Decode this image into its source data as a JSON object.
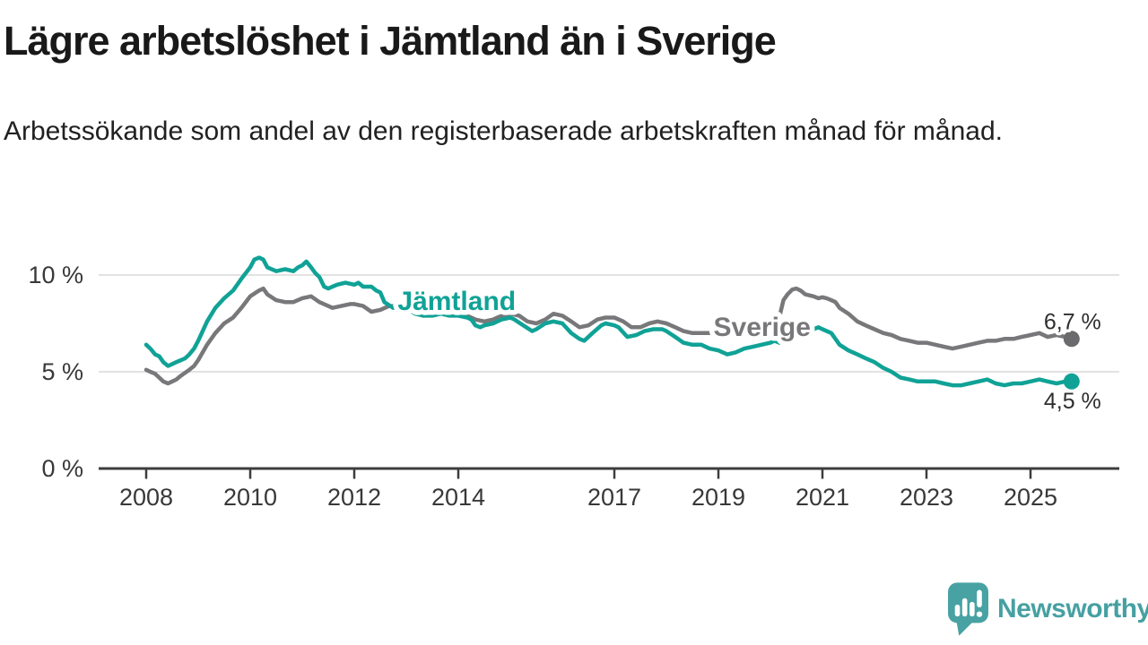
{
  "header": {
    "title": "Lägre arbetslöshet i Jämtland än i Sverige",
    "subtitle": "Arbetssökande som andel av den registerbaserade arbetskraften månad för månad."
  },
  "branding": {
    "wordmark": "Newsworthy",
    "accent_color": "#46a0a2"
  },
  "chart_data": {
    "type": "line",
    "title": "Lägre arbetslöshet i Jämtland än i Sverige",
    "subtitle": "Arbetssökande som andel av den registerbaserade arbetskraften månad för månad.",
    "x_unit": "year (monthly observations)",
    "x_range": [
      2007.1,
      2026.7
    ],
    "ylim": [
      0,
      11.6
    ],
    "grid": "horizontal",
    "legend_position": "inline-labels",
    "colors": {
      "gridline": "#d9d9d9",
      "axis": "#3d3d3d",
      "annotation_text": "#2e2e2e"
    },
    "y_ticks": [
      {
        "value": 0,
        "label": "0 %"
      },
      {
        "value": 5,
        "label": "5 %"
      },
      {
        "value": 10,
        "label": "10 %"
      }
    ],
    "x_ticks": [
      {
        "value": 2008,
        "label": "2008"
      },
      {
        "value": 2010,
        "label": "2010"
      },
      {
        "value": 2012,
        "label": "2012"
      },
      {
        "value": 2014,
        "label": "2014"
      },
      {
        "value": 2017,
        "label": "2017"
      },
      {
        "value": 2019,
        "label": "2019"
      },
      {
        "value": 2021,
        "label": "2021"
      },
      {
        "value": 2023,
        "label": "2023"
      },
      {
        "value": 2025,
        "label": "2025"
      }
    ],
    "series": [
      {
        "name": "Sverige",
        "color": "#78787b",
        "dot_color": "#6b6b6e",
        "label_color": "#78787b",
        "label_pos": [
          2019.84,
          7.31
        ],
        "end_label": "6,7 %",
        "end_value": 6.7,
        "end_label_placement": "above-end",
        "points": [
          [
            2008.0,
            5.1
          ],
          [
            2008.08,
            5.0
          ],
          [
            2008.17,
            4.9
          ],
          [
            2008.25,
            4.7
          ],
          [
            2008.33,
            4.5
          ],
          [
            2008.42,
            4.4
          ],
          [
            2008.5,
            4.5
          ],
          [
            2008.58,
            4.6
          ],
          [
            2008.67,
            4.8
          ],
          [
            2008.83,
            5.1
          ],
          [
            2008.92,
            5.3
          ],
          [
            2009.0,
            5.6
          ],
          [
            2009.17,
            6.4
          ],
          [
            2009.33,
            7.0
          ],
          [
            2009.5,
            7.5
          ],
          [
            2009.67,
            7.8
          ],
          [
            2009.83,
            8.3
          ],
          [
            2010.0,
            8.9
          ],
          [
            2010.17,
            9.2
          ],
          [
            2010.25,
            9.3
          ],
          [
            2010.33,
            9.0
          ],
          [
            2010.5,
            8.7
          ],
          [
            2010.67,
            8.6
          ],
          [
            2010.83,
            8.6
          ],
          [
            2011.0,
            8.8
          ],
          [
            2011.17,
            8.9
          ],
          [
            2011.33,
            8.6
          ],
          [
            2011.5,
            8.4
          ],
          [
            2011.58,
            8.3
          ],
          [
            2011.75,
            8.4
          ],
          [
            2011.92,
            8.5
          ],
          [
            2012.0,
            8.5
          ],
          [
            2012.17,
            8.4
          ],
          [
            2012.33,
            8.1
          ],
          [
            2012.5,
            8.2
          ],
          [
            2012.67,
            8.4
          ],
          [
            2012.83,
            8.4
          ],
          [
            2013.0,
            8.4
          ],
          [
            2013.17,
            8.1
          ],
          [
            2013.33,
            7.9
          ],
          [
            2013.5,
            8.0
          ],
          [
            2013.67,
            8.1
          ],
          [
            2013.83,
            8.0
          ],
          [
            2014.0,
            8.0
          ],
          [
            2014.17,
            7.9
          ],
          [
            2014.33,
            7.7
          ],
          [
            2014.5,
            7.6
          ],
          [
            2014.67,
            7.7
          ],
          [
            2014.83,
            7.9
          ],
          [
            2015.0,
            8.0
          ],
          [
            2015.17,
            7.9
          ],
          [
            2015.33,
            7.6
          ],
          [
            2015.5,
            7.5
          ],
          [
            2015.67,
            7.7
          ],
          [
            2015.83,
            8.0
          ],
          [
            2016.0,
            7.9
          ],
          [
            2016.17,
            7.6
          ],
          [
            2016.33,
            7.3
          ],
          [
            2016.5,
            7.4
          ],
          [
            2016.67,
            7.7
          ],
          [
            2016.83,
            7.8
          ],
          [
            2017.0,
            7.8
          ],
          [
            2017.17,
            7.6
          ],
          [
            2017.33,
            7.3
          ],
          [
            2017.5,
            7.3
          ],
          [
            2017.67,
            7.5
          ],
          [
            2017.83,
            7.6
          ],
          [
            2018.0,
            7.5
          ],
          [
            2018.17,
            7.3
          ],
          [
            2018.33,
            7.1
          ],
          [
            2018.5,
            7.0
          ],
          [
            2018.67,
            7.0
          ],
          [
            2018.83,
            7.0
          ],
          [
            2019.0,
            7.0
          ],
          [
            2019.17,
            6.9
          ],
          [
            2019.33,
            6.9
          ],
          [
            2019.5,
            6.9
          ],
          [
            2019.67,
            7.0
          ],
          [
            2019.83,
            7.0
          ],
          [
            2020.0,
            7.1
          ],
          [
            2020.17,
            7.8
          ],
          [
            2020.25,
            8.7
          ],
          [
            2020.33,
            9.0
          ],
          [
            2020.42,
            9.25
          ],
          [
            2020.5,
            9.3
          ],
          [
            2020.58,
            9.2
          ],
          [
            2020.67,
            9.0
          ],
          [
            2020.83,
            8.9
          ],
          [
            2020.92,
            8.8
          ],
          [
            2021.0,
            8.85
          ],
          [
            2021.08,
            8.8
          ],
          [
            2021.17,
            8.7
          ],
          [
            2021.25,
            8.6
          ],
          [
            2021.33,
            8.3
          ],
          [
            2021.5,
            8.0
          ],
          [
            2021.67,
            7.6
          ],
          [
            2021.83,
            7.4
          ],
          [
            2022.0,
            7.2
          ],
          [
            2022.17,
            7.0
          ],
          [
            2022.33,
            6.9
          ],
          [
            2022.5,
            6.7
          ],
          [
            2022.67,
            6.6
          ],
          [
            2022.83,
            6.5
          ],
          [
            2023.0,
            6.5
          ],
          [
            2023.17,
            6.4
          ],
          [
            2023.33,
            6.3
          ],
          [
            2023.5,
            6.2
          ],
          [
            2023.67,
            6.3
          ],
          [
            2023.83,
            6.4
          ],
          [
            2024.0,
            6.5
          ],
          [
            2024.17,
            6.6
          ],
          [
            2024.33,
            6.6
          ],
          [
            2024.5,
            6.7
          ],
          [
            2024.67,
            6.7
          ],
          [
            2024.83,
            6.8
          ],
          [
            2025.0,
            6.9
          ],
          [
            2025.17,
            7.0
          ],
          [
            2025.33,
            6.8
          ],
          [
            2025.5,
            6.9
          ],
          [
            2025.67,
            6.8
          ],
          [
            2025.79,
            6.7
          ]
        ]
      },
      {
        "name": "Jämtland",
        "color": "#10a296",
        "dot_color": "#10a296",
        "label_color": "#10a296",
        "label_pos": [
          2013.97,
          8.66
        ],
        "end_label": "4,5 %",
        "end_value": 4.5,
        "end_label_placement": "below-end",
        "points": [
          [
            2008.0,
            6.4
          ],
          [
            2008.08,
            6.2
          ],
          [
            2008.17,
            5.9
          ],
          [
            2008.25,
            5.8
          ],
          [
            2008.33,
            5.5
          ],
          [
            2008.42,
            5.3
          ],
          [
            2008.5,
            5.4
          ],
          [
            2008.58,
            5.5
          ],
          [
            2008.67,
            5.6
          ],
          [
            2008.75,
            5.7
          ],
          [
            2008.83,
            5.9
          ],
          [
            2008.92,
            6.2
          ],
          [
            2009.0,
            6.6
          ],
          [
            2009.17,
            7.6
          ],
          [
            2009.33,
            8.3
          ],
          [
            2009.5,
            8.8
          ],
          [
            2009.67,
            9.2
          ],
          [
            2009.83,
            9.8
          ],
          [
            2010.0,
            10.4
          ],
          [
            2010.08,
            10.8
          ],
          [
            2010.17,
            10.9
          ],
          [
            2010.25,
            10.8
          ],
          [
            2010.33,
            10.4
          ],
          [
            2010.5,
            10.2
          ],
          [
            2010.67,
            10.3
          ],
          [
            2010.83,
            10.2
          ],
          [
            2010.92,
            10.4
          ],
          [
            2011.0,
            10.5
          ],
          [
            2011.08,
            10.7
          ],
          [
            2011.17,
            10.4
          ],
          [
            2011.25,
            10.1
          ],
          [
            2011.33,
            9.9
          ],
          [
            2011.42,
            9.4
          ],
          [
            2011.5,
            9.3
          ],
          [
            2011.58,
            9.4
          ],
          [
            2011.67,
            9.5
          ],
          [
            2011.83,
            9.6
          ],
          [
            2012.0,
            9.5
          ],
          [
            2012.08,
            9.6
          ],
          [
            2012.17,
            9.4
          ],
          [
            2012.33,
            9.4
          ],
          [
            2012.42,
            9.2
          ],
          [
            2012.5,
            9.1
          ],
          [
            2012.58,
            8.6
          ],
          [
            2012.75,
            8.3
          ],
          [
            2012.92,
            8.4
          ],
          [
            2013.0,
            8.3
          ],
          [
            2013.17,
            8.0
          ],
          [
            2013.33,
            7.9
          ],
          [
            2013.5,
            7.9
          ],
          [
            2013.67,
            8.0
          ],
          [
            2013.83,
            7.9
          ],
          [
            2014.0,
            7.9
          ],
          [
            2014.17,
            7.8
          ],
          [
            2014.25,
            7.7
          ],
          [
            2014.33,
            7.4
          ],
          [
            2014.42,
            7.3
          ],
          [
            2014.5,
            7.4
          ],
          [
            2014.67,
            7.5
          ],
          [
            2014.83,
            7.7
          ],
          [
            2015.0,
            7.8
          ],
          [
            2015.08,
            7.7
          ],
          [
            2015.25,
            7.4
          ],
          [
            2015.42,
            7.1
          ],
          [
            2015.5,
            7.2
          ],
          [
            2015.67,
            7.5
          ],
          [
            2015.83,
            7.6
          ],
          [
            2016.0,
            7.5
          ],
          [
            2016.17,
            7.0
          ],
          [
            2016.33,
            6.7
          ],
          [
            2016.42,
            6.6
          ],
          [
            2016.58,
            7.0
          ],
          [
            2016.75,
            7.4
          ],
          [
            2016.83,
            7.5
          ],
          [
            2017.0,
            7.4
          ],
          [
            2017.08,
            7.3
          ],
          [
            2017.25,
            6.8
          ],
          [
            2017.42,
            6.9
          ],
          [
            2017.58,
            7.1
          ],
          [
            2017.75,
            7.2
          ],
          [
            2017.92,
            7.2
          ],
          [
            2018.0,
            7.1
          ],
          [
            2018.17,
            6.8
          ],
          [
            2018.33,
            6.5
          ],
          [
            2018.5,
            6.4
          ],
          [
            2018.67,
            6.4
          ],
          [
            2018.83,
            6.2
          ],
          [
            2019.0,
            6.1
          ],
          [
            2019.17,
            5.9
          ],
          [
            2019.33,
            6.0
          ],
          [
            2019.5,
            6.2
          ],
          [
            2019.67,
            6.3
          ],
          [
            2019.83,
            6.4
          ],
          [
            2020.0,
            6.5
          ],
          [
            2020.08,
            6.6
          ],
          [
            2020.17,
            6.5
          ],
          [
            2020.33,
            6.8
          ],
          [
            2020.5,
            7.0
          ],
          [
            2020.67,
            7.2
          ],
          [
            2020.83,
            7.2
          ],
          [
            2020.92,
            7.3
          ],
          [
            2021.0,
            7.2
          ],
          [
            2021.17,
            7.0
          ],
          [
            2021.33,
            6.4
          ],
          [
            2021.5,
            6.1
          ],
          [
            2021.67,
            5.9
          ],
          [
            2021.83,
            5.7
          ],
          [
            2022.0,
            5.5
          ],
          [
            2022.17,
            5.2
          ],
          [
            2022.33,
            5.0
          ],
          [
            2022.5,
            4.7
          ],
          [
            2022.67,
            4.6
          ],
          [
            2022.83,
            4.5
          ],
          [
            2023.0,
            4.5
          ],
          [
            2023.17,
            4.5
          ],
          [
            2023.33,
            4.4
          ],
          [
            2023.5,
            4.3
          ],
          [
            2023.67,
            4.3
          ],
          [
            2023.83,
            4.4
          ],
          [
            2024.0,
            4.5
          ],
          [
            2024.17,
            4.6
          ],
          [
            2024.33,
            4.4
          ],
          [
            2024.5,
            4.3
          ],
          [
            2024.67,
            4.4
          ],
          [
            2024.83,
            4.4
          ],
          [
            2025.0,
            4.5
          ],
          [
            2025.17,
            4.6
          ],
          [
            2025.33,
            4.5
          ],
          [
            2025.5,
            4.4
          ],
          [
            2025.67,
            4.5
          ],
          [
            2025.79,
            4.5
          ]
        ]
      }
    ]
  }
}
